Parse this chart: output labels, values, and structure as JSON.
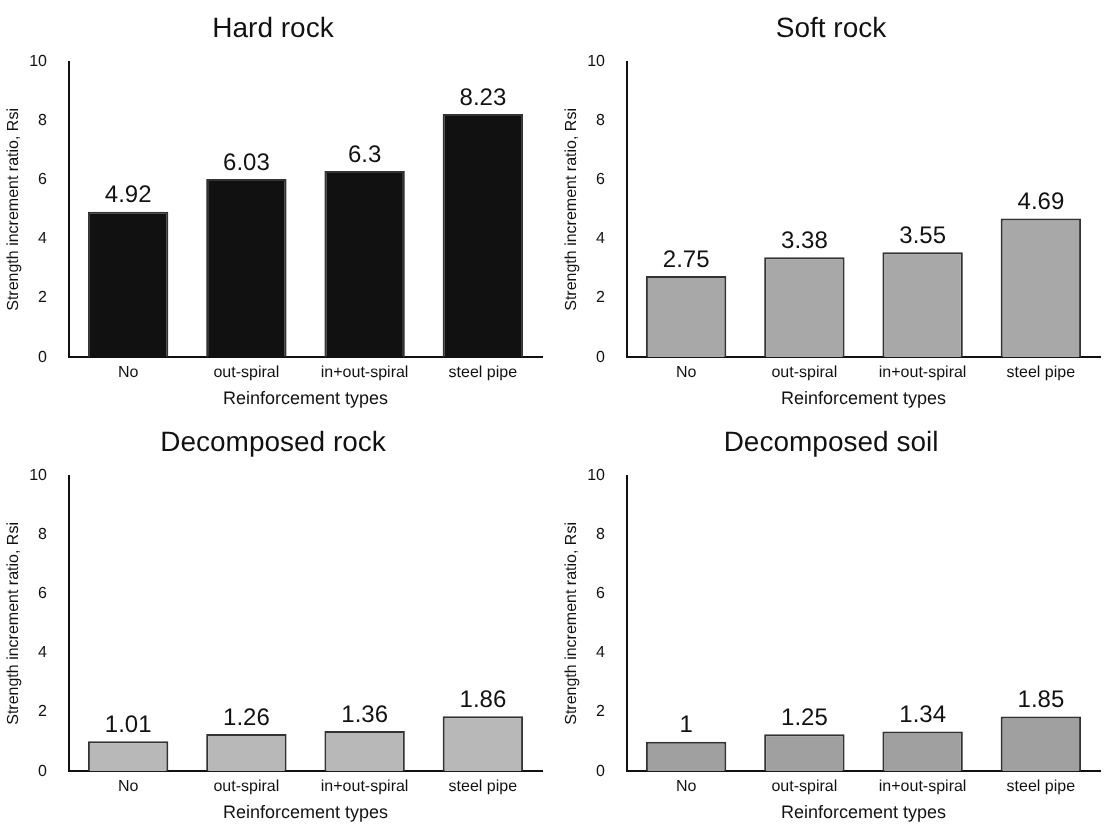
{
  "chart_data": [
    {
      "type": "bar",
      "title": "Hard rock",
      "xlabel": "Reinforcement types",
      "ylabel": "Strength increment ratio, Rsi",
      "categories": [
        "No",
        "out-spiral",
        "in+out-spiral",
        "steel pipe"
      ],
      "values": [
        4.92,
        6.03,
        6.3,
        8.23
      ],
      "color": "#111111",
      "ylim": [
        0,
        10
      ],
      "yticks": [
        0,
        2,
        4,
        6,
        8,
        10
      ],
      "data_labels": true,
      "grid": false,
      "legend": false
    },
    {
      "type": "bar",
      "title": "Soft rock",
      "xlabel": "Reinforcement types",
      "ylabel": "Strength increment ratio, Rsi",
      "categories": [
        "No",
        "out-spiral",
        "in+out-spiral",
        "steel pipe"
      ],
      "values": [
        2.75,
        3.38,
        3.55,
        4.69
      ],
      "color": "#a8a8a8",
      "ylim": [
        0,
        10
      ],
      "yticks": [
        0,
        2,
        4,
        6,
        8,
        10
      ],
      "data_labels": true,
      "grid": false,
      "legend": false
    },
    {
      "type": "bar",
      "title": "Decomposed rock",
      "xlabel": "Reinforcement types",
      "ylabel": "Strength increment ratio, Rsi",
      "categories": [
        "No",
        "out-spiral",
        "in+out-spiral",
        "steel pipe"
      ],
      "values": [
        1.01,
        1.26,
        1.36,
        1.86
      ],
      "color": "#b8b8b8",
      "ylim": [
        0,
        10
      ],
      "yticks": [
        0,
        2,
        4,
        6,
        8,
        10
      ],
      "data_labels": true,
      "grid": false,
      "legend": false
    },
    {
      "type": "bar",
      "title": "Decomposed soil",
      "xlabel": "Reinforcement types",
      "ylabel": "Strength increment ratio, Rsi",
      "categories": [
        "No",
        "out-spiral",
        "in+out-spiral",
        "steel pipe"
      ],
      "values": [
        1,
        1.25,
        1.34,
        1.85
      ],
      "color": "#a0a0a0",
      "ylim": [
        0,
        10
      ],
      "yticks": [
        0,
        2,
        4,
        6,
        8,
        10
      ],
      "data_labels": true,
      "grid": false,
      "legend": false
    }
  ]
}
